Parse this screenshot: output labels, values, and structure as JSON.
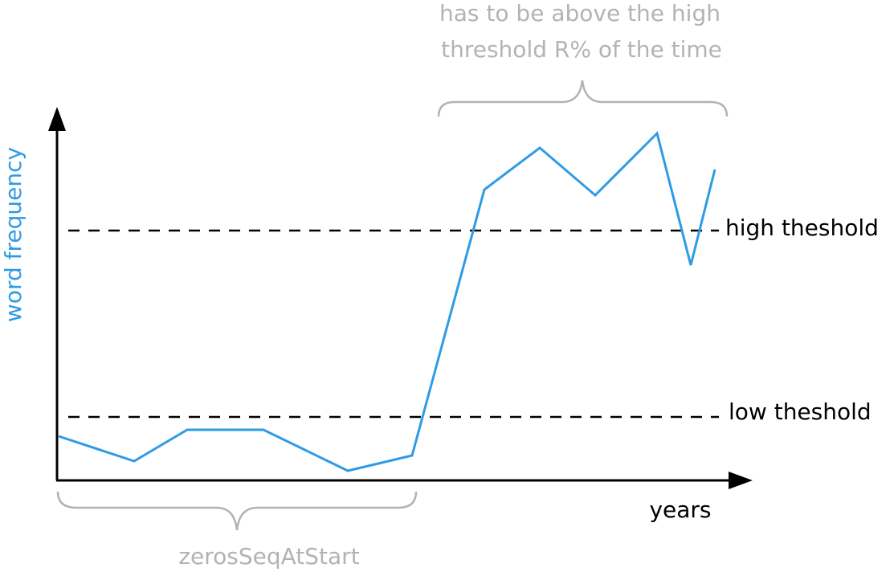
{
  "axes": {
    "x_label": "years",
    "y_label": "word frequency"
  },
  "thresholds": {
    "high": "high theshold",
    "low": "low theshold"
  },
  "annotations": {
    "top": [
      "has to be above the high",
      "threshold R% of the time"
    ],
    "bottom": "zerosSeqAtStart"
  }
}
